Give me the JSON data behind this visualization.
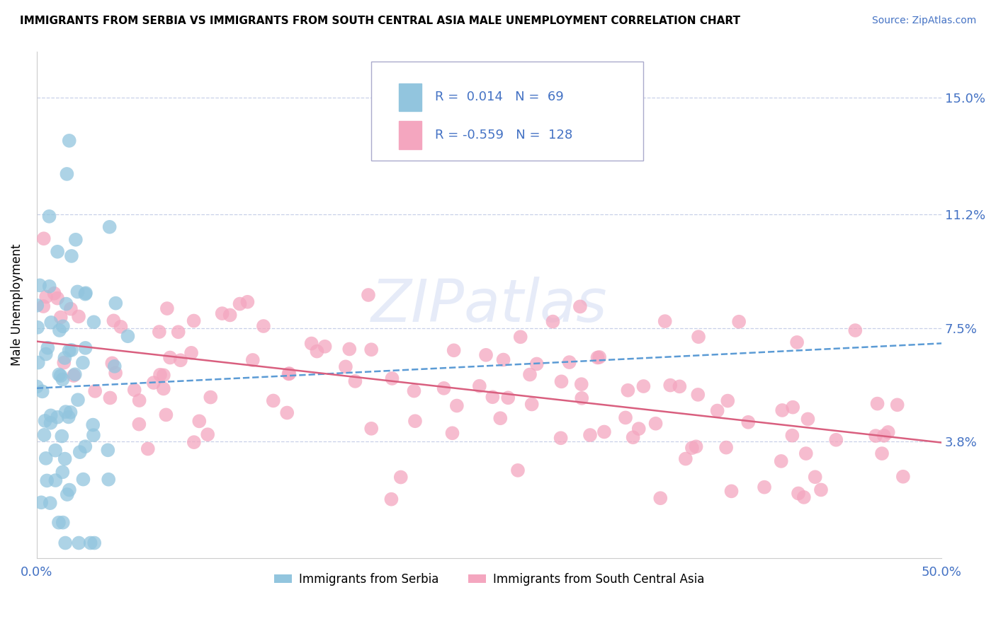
{
  "title": "IMMIGRANTS FROM SERBIA VS IMMIGRANTS FROM SOUTH CENTRAL ASIA MALE UNEMPLOYMENT CORRELATION CHART",
  "source": "Source: ZipAtlas.com",
  "ylabel": "Male Unemployment",
  "xlim": [
    0.0,
    0.5
  ],
  "ylim": [
    0.0,
    0.165
  ],
  "yticks": [
    0.038,
    0.075,
    0.112,
    0.15
  ],
  "ytick_labels": [
    "3.8%",
    "7.5%",
    "11.2%",
    "15.0%"
  ],
  "serbia_R": 0.014,
  "serbia_N": 69,
  "asia_R": -0.559,
  "asia_N": 128,
  "serbia_color": "#92c5de",
  "asia_color": "#f4a6bf",
  "trendline_serbia_color": "#5b9bd5",
  "trendline_asia_color": "#d95f7f",
  "legend_label_serbia": "Immigrants from Serbia",
  "legend_label_asia": "Immigrants from South Central Asia",
  "axis_color": "#4472c4",
  "grid_color": "#c8d0e8",
  "watermark": "ZIPatlas"
}
